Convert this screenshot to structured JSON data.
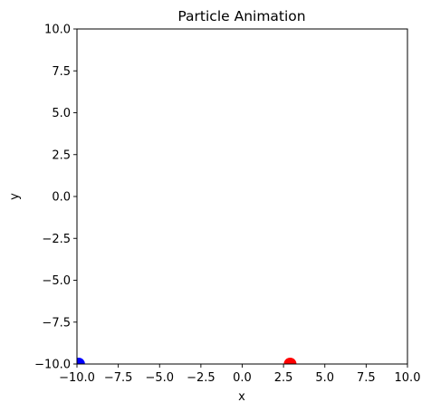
{
  "chart_data": {
    "type": "scatter",
    "title": "Particle Animation",
    "xlabel": "x",
    "ylabel": "y",
    "xlim": [
      -10,
      10
    ],
    "ylim": [
      -10,
      10
    ],
    "xticks": [
      -10,
      -7.5,
      -5,
      -2.5,
      0,
      2.5,
      5,
      7.5,
      10
    ],
    "yticks": [
      -10,
      -7.5,
      -5,
      -2.5,
      0,
      2.5,
      5,
      7.5,
      10
    ],
    "xtick_labels": [
      "−10.0",
      "−7.5",
      "−5.0",
      "−2.5",
      "0.0",
      "2.5",
      "5.0",
      "7.5",
      "10.0"
    ],
    "ytick_labels": [
      "−10.0",
      "−7.5",
      "−5.0",
      "−2.5",
      "0.0",
      "2.5",
      "5.0",
      "7.5",
      "10.0"
    ],
    "grid": false,
    "legend": "none",
    "points": [
      {
        "x": -9.9,
        "y": -10,
        "color": "#0000ff"
      },
      {
        "x": 2.9,
        "y": -10,
        "color": "#ff0000"
      }
    ]
  }
}
